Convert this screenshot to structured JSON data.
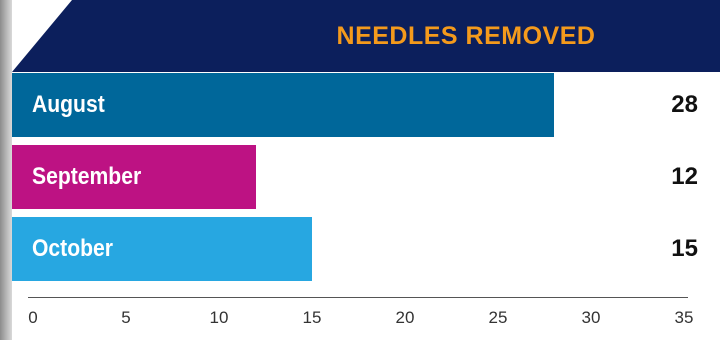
{
  "colors": {
    "title_bg": "#0c1f5c",
    "title_text": "#f49a1c",
    "bar_colors": [
      "#00679a",
      "#bd1283",
      "#27a7e1"
    ],
    "side_strip": "#b8b8b8"
  },
  "chart_data": {
    "type": "bar",
    "orientation": "horizontal",
    "title": "NEEDLES REMOVED",
    "categories": [
      "August",
      "September",
      "October"
    ],
    "values": [
      28,
      12,
      15
    ],
    "data_labels": [
      "28",
      "12",
      "15"
    ],
    "xlim": [
      0,
      35
    ],
    "x_ticks": [
      "0",
      "5",
      "10",
      "15",
      "20",
      "25",
      "30",
      "35"
    ],
    "grid": false,
    "legend": "none"
  }
}
